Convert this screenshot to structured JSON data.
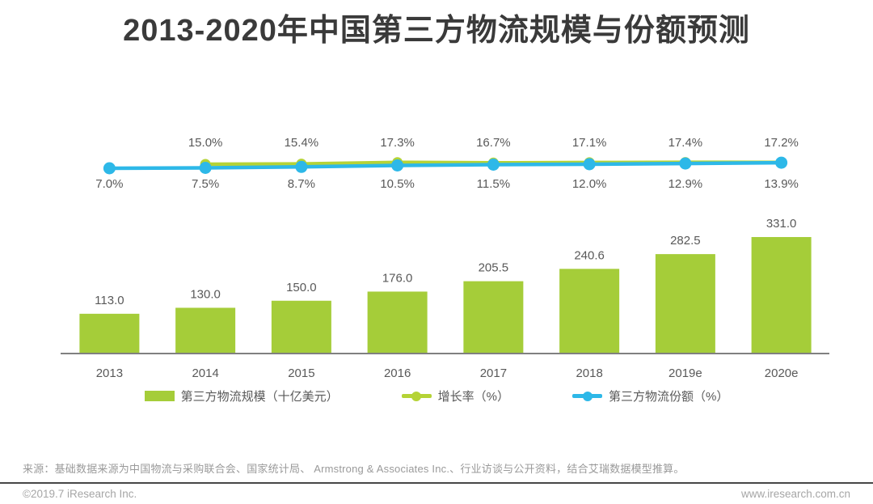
{
  "chart_data": {
    "type": "bar",
    "title": "2013-2020年中国第三方物流规模与份额预测",
    "categories": [
      "2013",
      "2014",
      "2015",
      "2016",
      "2017",
      "2018",
      "2019e",
      "2020e"
    ],
    "series": [
      {
        "name": "第三方物流规模（十亿美元）",
        "type": "bar",
        "color": "#a5cd39",
        "values": [
          113.0,
          130.0,
          150.0,
          176.0,
          205.5,
          240.6,
          282.5,
          331.0
        ],
        "labels": [
          "113.0",
          "130.0",
          "150.0",
          "176.0",
          "205.5",
          "240.6",
          "282.5",
          "331.0"
        ]
      },
      {
        "name": "增长率（%）",
        "type": "line",
        "color": "#b5d336",
        "values": [
          null,
          15.0,
          15.4,
          17.3,
          16.7,
          17.1,
          17.4,
          17.2
        ],
        "labels": [
          "",
          "15.0%",
          "15.4%",
          "17.3%",
          "16.7%",
          "17.1%",
          "17.4%",
          "17.2%"
        ]
      },
      {
        "name": "第三方物流份额（%）",
        "type": "line",
        "color": "#2db8e8",
        "values": [
          7.0,
          7.5,
          8.7,
          10.5,
          11.5,
          12.0,
          12.9,
          13.9
        ],
        "labels": [
          "7.0%",
          "7.5%",
          "8.7%",
          "10.5%",
          "11.5%",
          "12.0%",
          "12.9%",
          "13.9%"
        ]
      }
    ],
    "value_labels_shown": true,
    "grid": false,
    "y_axis_shown": false,
    "legend_position": "bottom"
  },
  "colors": {
    "bar-green": "#a5cd39",
    "line-green": "#b5d336",
    "line-blue": "#2db8e8",
    "axis-gray": "#808080",
    "label-gray": "#595959",
    "title-gray": "#3a3a3a"
  },
  "footer": {
    "source": "来源：基础数据来源为中国物流与采购联合会、国家统计局、 Armstrong & Associates Inc.、行业访谈与公开资料，结合艾瑞数据模型推算。",
    "copyright": "©2019.7 iResearch Inc.",
    "website": "www.iresearch.com.cn"
  }
}
